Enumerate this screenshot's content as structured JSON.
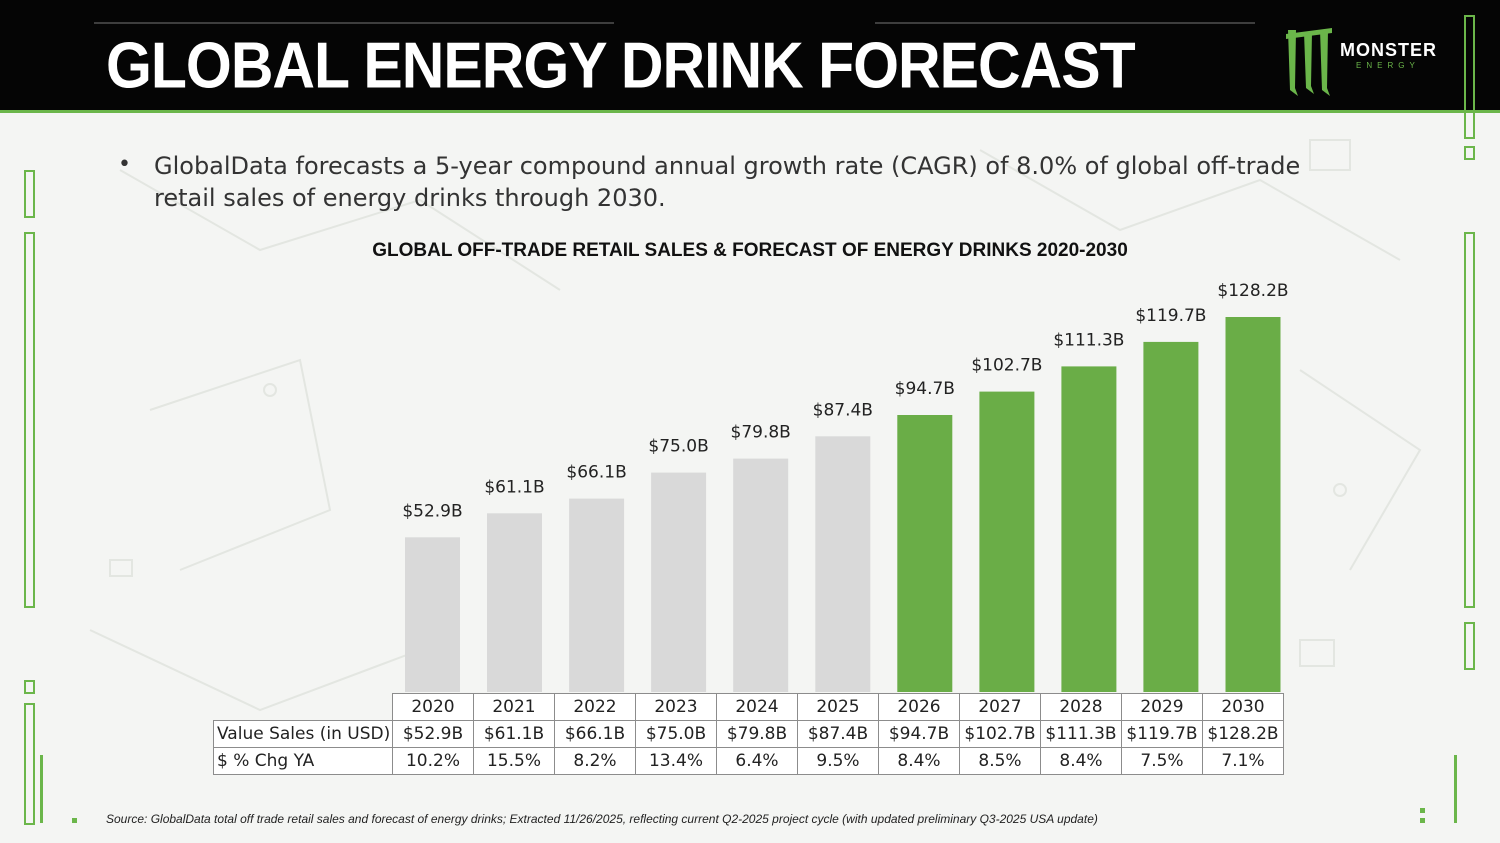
{
  "header": {
    "title": "GLOBAL ENERGY DRINK FORECAST"
  },
  "logo": {
    "brand": "MONSTER",
    "sub": "ENERGY",
    "mark_color": "#6bb64a"
  },
  "bullet": {
    "text": "GlobalData forecasts a 5-year compound annual growth rate (CAGR) of 8.0% of global off-trade retail sales of energy drinks through 2030."
  },
  "chart_data": {
    "type": "bar",
    "title": "GLOBAL OFF-TRADE RETAIL SALES & FORECAST OF ENERGY DRINKS 2020-2030",
    "categories": [
      "2020",
      "2021",
      "2022",
      "2023",
      "2024",
      "2025",
      "2026",
      "2027",
      "2028",
      "2029",
      "2030"
    ],
    "values": [
      52.9,
      61.1,
      66.1,
      75.0,
      79.8,
      87.4,
      94.7,
      102.7,
      111.3,
      119.7,
      128.2
    ],
    "value_labels": [
      "$52.9B",
      "$61.1B",
      "$66.1B",
      "$75.0B",
      "$79.8B",
      "$87.4B",
      "$94.7B",
      "$102.7B",
      "$111.3B",
      "$119.7B",
      "$128.2B"
    ],
    "unit": "USD billions",
    "forecast_start_index": 6,
    "colors": {
      "actual": "#d9d9d9",
      "forecast": "#6aad47"
    },
    "ylim": [
      0,
      135
    ],
    "xlabel": "",
    "ylabel": ""
  },
  "table": {
    "rows": [
      {
        "label": "Value Sales (in USD)",
        "values": [
          "$52.9B",
          "$61.1B",
          "$66.1B",
          "$75.0B",
          "$79.8B",
          "$87.4B",
          "$94.7B",
          "$102.7B",
          "$111.3B",
          "$119.7B",
          "$128.2B"
        ]
      },
      {
        "label": "$ % Chg YA",
        "values": [
          "10.2%",
          "15.5%",
          "8.2%",
          "13.4%",
          "6.4%",
          "9.5%",
          "8.4%",
          "8.5%",
          "8.4%",
          "7.5%",
          "7.1%"
        ]
      }
    ]
  },
  "source": "Source: GlobalData total off trade retail sales and forecast of energy drinks; Extracted 11/26/2025, reflecting current Q2-2025  project cycle (with updated preliminary Q3-2025 USA update)"
}
